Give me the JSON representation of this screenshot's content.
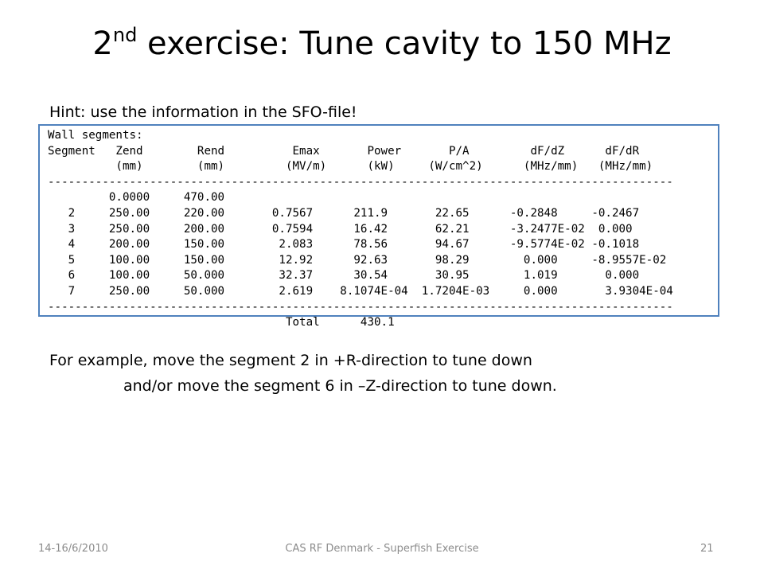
{
  "slide": {
    "title": {
      "number": "2",
      "superscript": "nd",
      "rest": " exercise: Tune cavity to 150 MHz"
    },
    "hint": "Hint: use the information in the SFO-file!",
    "sfo_output": {
      "lines": [
        "Wall segments:",
        "Segment   Zend        Rend          Emax       Power       P/A         dF/dZ      dF/dR",
        "          (mm)        (mm)         (MV/m)      (kW)     (W/cm^2)      (MHz/mm)   (MHz/mm)",
        "--------------------------------------------------------------------------------------------",
        "         0.0000     470.00",
        "   2     250.00     220.00       0.7567      211.9       22.65      -0.2848     -0.2467",
        "   3     250.00     200.00       0.7594      16.42       62.21      -3.2477E-02  0.000",
        "   4     200.00     150.00        2.083      78.56       94.67      -9.5774E-02 -0.1018",
        "   5     100.00     150.00        12.92      92.63       98.29        0.000     -8.9557E-02",
        "   6     100.00     50.000        32.37      30.54       30.95        1.019       0.000",
        "   7     250.00     50.000        2.619    8.1074E-04  1.7204E-03     0.000       3.9304E-04",
        "--------------------------------------------------------------------------------------------",
        "                                   Total      430.1"
      ]
    },
    "example": [
      "For example, move the segment 2 in +R-direction to tune down",
      "and/or move the segment 6 in –Z-direction to tune down."
    ],
    "footer": {
      "date": "14-16/6/2010",
      "center": "CAS RF Denmark - Superfish Exercise",
      "page": "21"
    }
  }
}
